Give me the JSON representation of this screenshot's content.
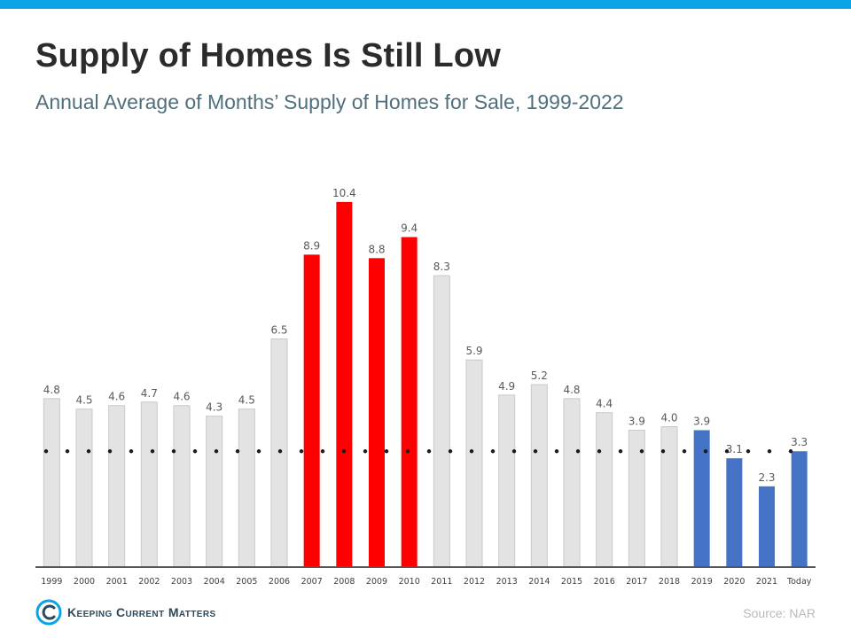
{
  "header": {
    "title": "Supply of Homes Is Still Low",
    "subtitle": "Annual Average of Months’ Supply of Homes for Sale, 1999-2022"
  },
  "footer": {
    "brand": "Keeping Current Matters",
    "source": "Source: NAR"
  },
  "colors": {
    "accent_bar": "#0aa3e6",
    "gray_bar": "#e3e3e3",
    "red_bar": "#ff0000",
    "blue_bar": "#4472c4"
  },
  "chart_data": {
    "type": "bar",
    "categories": [
      "1999",
      "2000",
      "2001",
      "2002",
      "2003",
      "2004",
      "2005",
      "2006",
      "2007",
      "2008",
      "2009",
      "2010",
      "2011",
      "2012",
      "2013",
      "2014",
      "2015",
      "2016",
      "2017",
      "2018",
      "2019",
      "2020",
      "2021",
      "Today"
    ],
    "values": [
      4.8,
      4.5,
      4.6,
      4.7,
      4.6,
      4.3,
      4.5,
      6.5,
      8.9,
      10.4,
      8.8,
      9.4,
      8.3,
      5.9,
      4.9,
      5.2,
      4.8,
      4.4,
      3.9,
      4.0,
      3.9,
      3.1,
      2.3,
      3.3
    ],
    "data_labels": [
      "4.8",
      "4.5",
      "4.6",
      "4.7",
      "4.6",
      "4.3",
      "4.5",
      "6.5",
      "8.9",
      "10.4",
      "8.8",
      "9.4",
      "8.3",
      "5.9",
      "4.9",
      "5.2",
      "4.8",
      "4.4",
      "3.9",
      "4.0",
      "3.9",
      "3.1",
      "2.3",
      "3.3"
    ],
    "bar_groups": [
      "gray",
      "gray",
      "gray",
      "gray",
      "gray",
      "gray",
      "gray",
      "gray",
      "red",
      "red",
      "red",
      "red",
      "gray",
      "gray",
      "gray",
      "gray",
      "gray",
      "gray",
      "gray",
      "gray",
      "blue",
      "blue",
      "blue",
      "blue"
    ],
    "reference_line": {
      "value": 3.3,
      "style": "dotted"
    },
    "ylim": [
      0,
      10.6
    ],
    "grid": false,
    "xlabel": "",
    "ylabel": ""
  }
}
